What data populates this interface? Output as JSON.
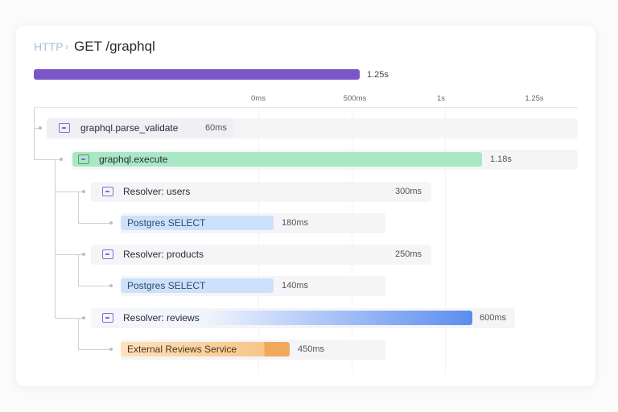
{
  "header": {
    "breadcrumb": "HTTP",
    "title": "GET /graphql"
  },
  "total": {
    "label": "1.25s",
    "color": "#7a56c9"
  },
  "axis": {
    "ticks": [
      "0ms",
      "500ms",
      "1s",
      "1.25s"
    ]
  },
  "spans": [
    {
      "name": "graphql.parse_validate",
      "duration": "60ms",
      "icon": "span-icon"
    },
    {
      "name": "graphql.execute",
      "duration": "1.18s",
      "icon": "span-icon",
      "color": "#a8e8c4"
    },
    {
      "name": "Resolver: users",
      "duration": "300ms",
      "icon": "span-icon"
    },
    {
      "name": "Postgres SELECT",
      "duration": "180ms",
      "color": "#cde1fb"
    },
    {
      "name": "Resolver: products",
      "duration": "250ms",
      "icon": "span-icon"
    },
    {
      "name": "Postgres SELECT",
      "duration": "140ms",
      "color": "#cde1fb"
    },
    {
      "name": "Resolver: reviews",
      "duration": "600ms",
      "icon": "span-icon",
      "color": "#5b8def"
    },
    {
      "name": "External Reviews Service",
      "duration": "450ms",
      "color": "#f7c68a"
    }
  ]
}
